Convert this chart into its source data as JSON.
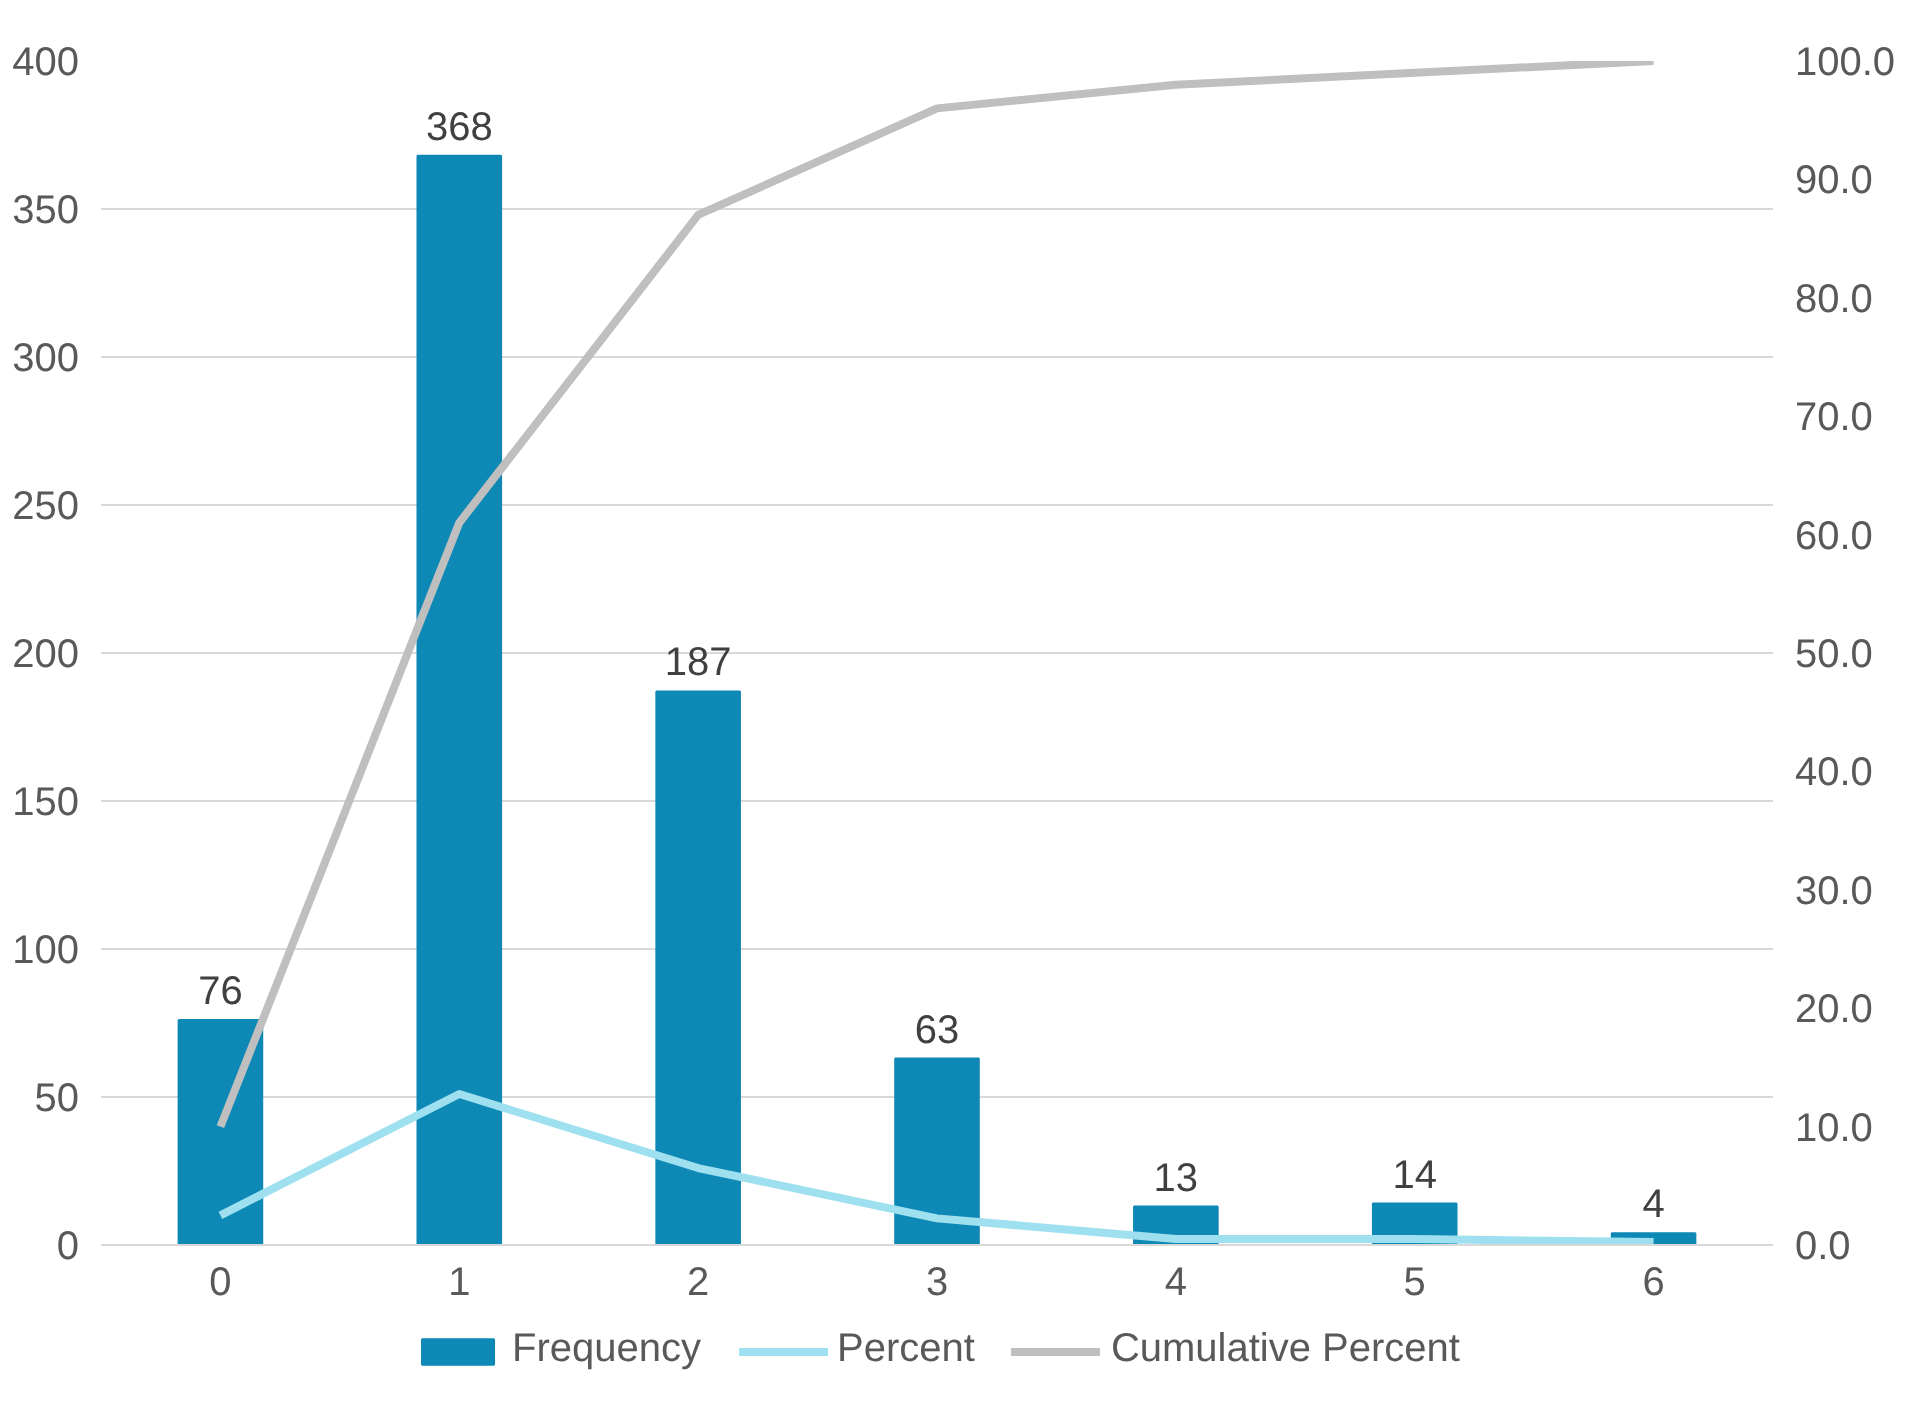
{
  "chart_data": {
    "type": "bar",
    "categories": [
      "0",
      "1",
      "2",
      "3",
      "4",
      "5",
      "6"
    ],
    "series": [
      {
        "name": "Frequency",
        "color": "#0e88b5",
        "values": [
          76,
          368,
          187,
          63,
          13,
          14,
          4
        ],
        "value_labels": [
          "76",
          "368",
          "187",
          "63",
          "13",
          "14",
          "4"
        ]
      },
      {
        "name": "Percent",
        "type": "line",
        "color": "#9ee0ef",
        "values": [
          10,
          51,
          26,
          9,
          2,
          2,
          1
        ]
      },
      {
        "name": "Cumulative Percent",
        "type": "line",
        "axis": "y2",
        "color": "#bfbfbf",
        "values": [
          10,
          61,
          87,
          96,
          98,
          99,
          100
        ]
      }
    ],
    "ylim": [
      0,
      400
    ],
    "yticks": [
      0,
      50,
      100,
      150,
      200,
      250,
      300,
      350,
      400
    ],
    "y2lim": [
      0,
      100
    ],
    "y2ticks": [
      {
        "value": 0,
        "label": "0.0"
      },
      {
        "value": 10,
        "label": "10.0"
      },
      {
        "value": 20,
        "label": "20.0"
      },
      {
        "value": 30,
        "label": "30.0"
      },
      {
        "value": 40,
        "label": "40.0"
      },
      {
        "value": 50,
        "label": "50.0"
      },
      {
        "value": 60,
        "label": "60.0"
      },
      {
        "value": 70,
        "label": "70.0"
      },
      {
        "value": 80,
        "label": "80.0"
      },
      {
        "value": 90,
        "label": "90.0"
      },
      {
        "value": 100,
        "label": "100.0"
      }
    ],
    "grid": "y",
    "legend": "bottom"
  }
}
